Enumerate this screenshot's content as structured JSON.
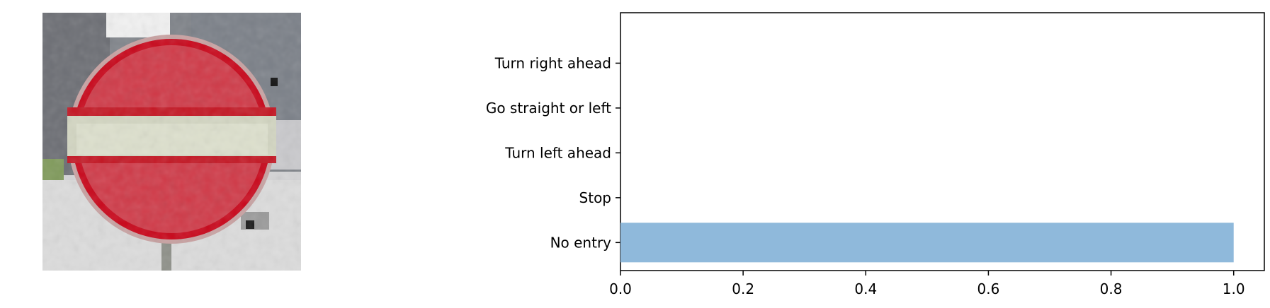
{
  "image": {
    "icon": "no-entry-sign",
    "colors": {
      "sign_red": "#cf3a46",
      "bar_white": "#d9dccb",
      "background_gray": "#8a8e92"
    }
  },
  "chart_data": {
    "type": "bar",
    "orientation": "horizontal",
    "categories": [
      "No entry",
      "Stop",
      "Turn left ahead",
      "Go straight or left",
      "Turn right ahead"
    ],
    "values": [
      1.0,
      0.0,
      0.0,
      0.0,
      0.0
    ],
    "xlim": [
      0.0,
      1.05
    ],
    "xticks": [
      "0.0",
      "0.2",
      "0.4",
      "0.6",
      "0.8",
      "1.0"
    ],
    "grid": false,
    "bar_color": "#8fb9db"
  }
}
